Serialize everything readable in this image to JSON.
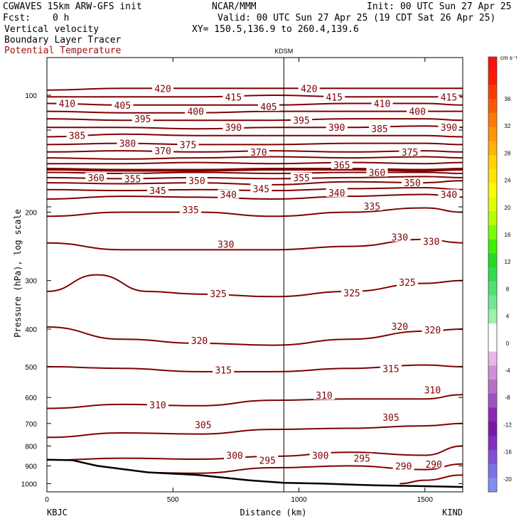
{
  "header": {
    "model": "CGWAVES 15km ARW-GFS init",
    "org": "NCAR/MMM",
    "init": "Init: 00 UTC Sun 27 Apr 25",
    "fcst_label": "Fcst:",
    "fcst_value": "0 h",
    "valid": "Valid: 00 UTC Sun 27 Apr 25 (19 CDT Sat 26 Apr 25)",
    "field1": "Vertical velocity",
    "xy": "XY= 150.5,136.9 to 260.4,139.6",
    "field2": "Boundary Layer Tracer",
    "field3": "Potential Temperature"
  },
  "colors": {
    "contour": "#800000",
    "field3_text": "#a01010"
  },
  "chart_data": {
    "type": "line",
    "title": "KDSM",
    "xlabel": "Distance (km)",
    "ylabel": "Pressure (hPa), log scale",
    "xlim": [
      0,
      1650
    ],
    "ylim": [
      1050,
      80
    ],
    "yscale": "log",
    "x_ticks": [
      0,
      500,
      1000,
      1500
    ],
    "y_ticks": [
      100,
      200,
      300,
      400,
      500,
      600,
      700,
      800,
      900,
      1000
    ],
    "x_endpoint_labels": {
      "left": "KBJC",
      "right": "KIND"
    },
    "vertical_marker": {
      "label": "KDSM",
      "x": 940
    },
    "series": [
      {
        "name": "290",
        "x": [
          1400,
          1500,
          1650
        ],
        "y": [
          1000,
          980,
          950
        ]
      },
      {
        "name": "295",
        "x": [
          0,
          300,
          600,
          900,
          1200,
          1500,
          1650
        ],
        "y": [
          960,
          935,
          940,
          910,
          900,
          920,
          890
        ]
      },
      {
        "name": "300",
        "x": [
          0,
          300,
          600,
          900,
          1200,
          1500,
          1650
        ],
        "y": [
          870,
          860,
          865,
          850,
          830,
          845,
          800
        ]
      },
      {
        "name": "305",
        "x": [
          0,
          300,
          600,
          900,
          1200,
          1500,
          1650
        ],
        "y": [
          760,
          740,
          745,
          725,
          720,
          710,
          700
        ]
      },
      {
        "name": "310",
        "x": [
          0,
          300,
          600,
          900,
          1200,
          1500,
          1650
        ],
        "y": [
          640,
          625,
          630,
          610,
          605,
          605,
          590
        ]
      },
      {
        "name": "315",
        "x": [
          0,
          300,
          600,
          900,
          1200,
          1500,
          1650
        ],
        "y": [
          500,
          505,
          515,
          515,
          505,
          495,
          500
        ]
      },
      {
        "name": "320",
        "x": [
          0,
          300,
          600,
          900,
          1200,
          1500,
          1650
        ],
        "y": [
          395,
          425,
          435,
          440,
          425,
          405,
          400
        ]
      },
      {
        "name": "325",
        "x": [
          0,
          200,
          400,
          600,
          900,
          1200,
          1500,
          1650
        ],
        "y": [
          320,
          290,
          320,
          325,
          330,
          320,
          305,
          300
        ]
      },
      {
        "name": "330",
        "x": [
          0,
          300,
          600,
          900,
          1200,
          1500,
          1650
        ],
        "y": [
          240,
          250,
          250,
          250,
          245,
          235,
          240
        ]
      },
      {
        "name": "335",
        "x": [
          0,
          300,
          600,
          900,
          1200,
          1500,
          1650
        ],
        "y": [
          205,
          200,
          200,
          205,
          200,
          195,
          200
        ]
      },
      {
        "name": "340",
        "x": [
          0,
          300,
          600,
          900,
          1200,
          1500,
          1650
        ],
        "y": [
          185,
          182,
          183,
          185,
          182,
          180,
          183
        ]
      },
      {
        "name": "345",
        "x": [
          0,
          300,
          600,
          900,
          1200,
          1500,
          1650
        ],
        "y": [
          175,
          176,
          175,
          176,
          174,
          173,
          175
        ]
      },
      {
        "name": "350",
        "x": [
          0,
          300,
          600,
          900,
          1200,
          1500,
          1650
        ],
        "y": [
          168,
          169,
          168,
          170,
          167,
          168,
          166
        ]
      },
      {
        "name": "355",
        "x": [
          0,
          300,
          600,
          900,
          1200,
          1500,
          1650
        ],
        "y": [
          163,
          164,
          163,
          164,
          163,
          162,
          163
        ]
      },
      {
        "name": "360",
        "x": [
          0,
          300,
          600,
          900,
          1200,
          1500,
          1650
        ],
        "y": [
          158,
          159,
          158,
          159,
          158,
          158,
          159
        ]
      },
      {
        "name": "365",
        "x": [
          0,
          300,
          600,
          900,
          1200,
          1500,
          1650
        ],
        "y": [
          155,
          156,
          156,
          155,
          155,
          156,
          155
        ]
      },
      {
        "name": "370",
        "x": [
          0,
          300,
          600,
          900,
          1200,
          1500,
          1650
        ],
        "y": [
          150,
          150,
          149,
          150,
          149,
          150,
          149
        ]
      },
      {
        "name": "375",
        "x": [
          0,
          300,
          600,
          900,
          1200,
          1500,
          1650
        ],
        "y": [
          145,
          146,
          145,
          144,
          145,
          144,
          145
        ]
      },
      {
        "name": "380",
        "x": [
          0,
          300,
          600,
          900,
          1200,
          1500,
          1650
        ],
        "y": [
          140,
          139,
          140,
          139,
          140,
          139,
          140
        ]
      },
      {
        "name": "385",
        "x": [
          0,
          300,
          600,
          900,
          1200,
          1500,
          1650
        ],
        "y": [
          134,
          133,
          134,
          134,
          133,
          133,
          134
        ]
      },
      {
        "name": "390",
        "x": [
          0,
          300,
          600,
          900,
          1200,
          1500,
          1650
        ],
        "y": [
          128,
          126,
          127,
          127,
          127,
          127,
          128
        ]
      },
      {
        "name": "395",
        "x": [
          0,
          300,
          600,
          900,
          1200,
          1500,
          1650
        ],
        "y": [
          121,
          121,
          122,
          121,
          121,
          120,
          121
        ]
      },
      {
        "name": "400",
        "x": [
          0,
          300,
          600,
          900,
          1200,
          1500,
          1650
        ],
        "y": [
          115,
          116,
          116,
          116,
          115,
          115,
          116
        ]
      },
      {
        "name": "405",
        "x": [
          0,
          300,
          600,
          900,
          1200,
          1500,
          1650
        ],
        "y": [
          110,
          111,
          111,
          110,
          110,
          110,
          110
        ]
      },
      {
        "name": "410",
        "x": [
          0,
          300,
          600,
          900,
          1200,
          1500,
          1650
        ],
        "y": [
          105,
          106,
          106,
          106,
          105,
          105,
          106
        ]
      },
      {
        "name": "415",
        "x": [
          0,
          300,
          600,
          900,
          1200,
          1500,
          1650
        ],
        "y": [
          101,
          101,
          101,
          100,
          101,
          101,
          101
        ]
      },
      {
        "name": "420",
        "x": [
          0,
          300,
          600,
          900,
          1200,
          1500,
          1650
        ],
        "y": [
          97,
          96,
          96,
          96,
          96,
          96,
          96
        ]
      }
    ],
    "contour_labels": [
      {
        "text": "420",
        "x": 460,
        "y": 96
      },
      {
        "text": "415",
        "x": 740,
        "y": 101
      },
      {
        "text": "420",
        "x": 1040,
        "y": 96
      },
      {
        "text": "415",
        "x": 1140,
        "y": 101
      },
      {
        "text": "410",
        "x": 1330,
        "y": 105
      },
      {
        "text": "415",
        "x": 1595,
        "y": 101
      },
      {
        "text": "410",
        "x": 80,
        "y": 105
      },
      {
        "text": "405",
        "x": 300,
        "y": 106
      },
      {
        "text": "405",
        "x": 880,
        "y": 107
      },
      {
        "text": "400",
        "x": 590,
        "y": 110
      },
      {
        "text": "400",
        "x": 1470,
        "y": 110
      },
      {
        "text": "395",
        "x": 380,
        "y": 115
      },
      {
        "text": "395",
        "x": 1010,
        "y": 116
      },
      {
        "text": "390",
        "x": 740,
        "y": 121
      },
      {
        "text": "390",
        "x": 1150,
        "y": 121
      },
      {
        "text": "385",
        "x": 1320,
        "y": 122
      },
      {
        "text": "390",
        "x": 1595,
        "y": 121
      },
      {
        "text": "385",
        "x": 120,
        "y": 127
      },
      {
        "text": "380",
        "x": 320,
        "y": 133
      },
      {
        "text": "375",
        "x": 560,
        "y": 134
      },
      {
        "text": "370",
        "x": 460,
        "y": 139
      },
      {
        "text": "370",
        "x": 840,
        "y": 140
      },
      {
        "text": "375",
        "x": 1440,
        "y": 140
      },
      {
        "text": "365",
        "x": 1170,
        "y": 151
      },
      {
        "text": "360",
        "x": 195,
        "y": 163
      },
      {
        "text": "355",
        "x": 340,
        "y": 164
      },
      {
        "text": "360",
        "x": 1310,
        "y": 158
      },
      {
        "text": "355",
        "x": 1010,
        "y": 163
      },
      {
        "text": "350",
        "x": 595,
        "y": 166
      },
      {
        "text": "350",
        "x": 1450,
        "y": 168
      },
      {
        "text": "345",
        "x": 440,
        "y": 176
      },
      {
        "text": "345",
        "x": 850,
        "y": 174
      },
      {
        "text": "340",
        "x": 720,
        "y": 180
      },
      {
        "text": "340",
        "x": 1150,
        "y": 178
      },
      {
        "text": "340",
        "x": 1595,
        "y": 180
      },
      {
        "text": "335",
        "x": 570,
        "y": 197
      },
      {
        "text": "335",
        "x": 1290,
        "y": 193
      },
      {
        "text": "330",
        "x": 710,
        "y": 242
      },
      {
        "text": "330",
        "x": 1400,
        "y": 232
      },
      {
        "text": "330",
        "x": 1525,
        "y": 238
      },
      {
        "text": "325",
        "x": 680,
        "y": 324
      },
      {
        "text": "325",
        "x": 1210,
        "y": 323
      },
      {
        "text": "325",
        "x": 1430,
        "y": 303
      },
      {
        "text": "320",
        "x": 605,
        "y": 428
      },
      {
        "text": "320",
        "x": 1400,
        "y": 393
      },
      {
        "text": "320",
        "x": 1530,
        "y": 402
      },
      {
        "text": "315",
        "x": 700,
        "y": 510
      },
      {
        "text": "315",
        "x": 1365,
        "y": 505
      },
      {
        "text": "310",
        "x": 440,
        "y": 627
      },
      {
        "text": "310",
        "x": 1100,
        "y": 592
      },
      {
        "text": "310",
        "x": 1530,
        "y": 573
      },
      {
        "text": "305",
        "x": 620,
        "y": 705
      },
      {
        "text": "305",
        "x": 1365,
        "y": 675
      },
      {
        "text": "300",
        "x": 745,
        "y": 845
      },
      {
        "text": "300",
        "x": 1085,
        "y": 845
      },
      {
        "text": "295",
        "x": 875,
        "y": 870
      },
      {
        "text": "295",
        "x": 1250,
        "y": 860
      },
      {
        "text": "290",
        "x": 1415,
        "y": 900
      },
      {
        "text": "290",
        "x": 1535,
        "y": 890
      }
    ],
    "terrain": {
      "x": [
        0,
        100,
        200,
        400,
        600,
        800,
        940,
        1100,
        1300,
        1500,
        1650
      ],
      "y": [
        868,
        870,
        900,
        935,
        950,
        980,
        995,
        1000,
        1010,
        1015,
        1020
      ]
    },
    "colorbar": {
      "unit": "cm s⁻¹",
      "labels": [
        "36",
        "32",
        "28",
        "24",
        "20",
        "16",
        "12",
        "8",
        "4",
        "0",
        "-4",
        "-8",
        "-12",
        "-16",
        "-20"
      ],
      "colors": [
        "#ff1010",
        "#ff1a00",
        "#ff3c00",
        "#ff5a00",
        "#ff7800",
        "#ff9600",
        "#ffb400",
        "#ffd200",
        "#ffe600",
        "#fffa00",
        "#e0ff00",
        "#b4ff00",
        "#78ff00",
        "#3cf000",
        "#20dc20",
        "#30dc50",
        "#50e070",
        "#70e890",
        "#a0f0b0",
        "#ffffff",
        "#ffffff",
        "#e8b8e8",
        "#d090d8",
        "#b870c8",
        "#a050c0",
        "#8c28b0",
        "#7818a8",
        "#8030c0",
        "#8050d8",
        "#8070e8",
        "#8090f0"
      ]
    }
  }
}
